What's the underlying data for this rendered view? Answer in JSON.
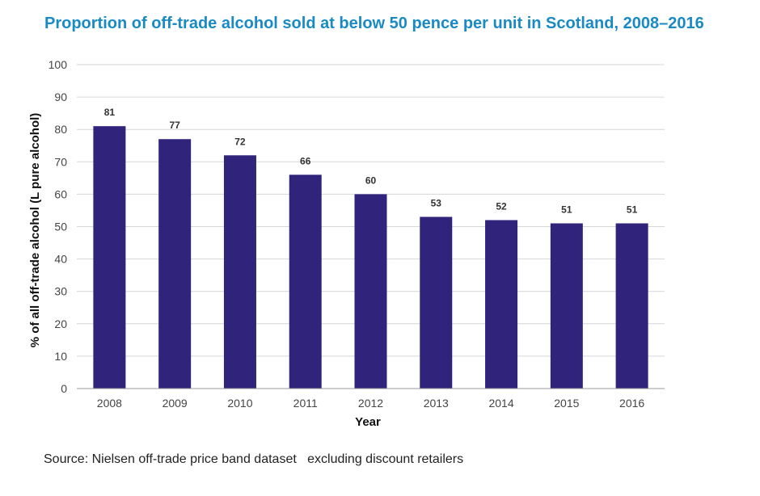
{
  "chart_data": {
    "type": "bar",
    "title": "Proportion of off-trade alcohol sold at below 50 pence per unit in Scotland, 2008–2016",
    "xlabel": "Year",
    "ylabel": "% of all off-trade alcohol (L pure alcohol)",
    "categories": [
      "2008",
      "2009",
      "2010",
      "2011",
      "2012",
      "2013",
      "2014",
      "2015",
      "2016"
    ],
    "values": [
      81,
      77,
      72,
      66,
      60,
      53,
      52,
      51,
      51
    ],
    "ylim": [
      0,
      100
    ],
    "yticks": [
      0,
      10,
      20,
      30,
      40,
      50,
      60,
      70,
      80,
      90,
      100
    ],
    "grid": true,
    "legend": "none",
    "colors": {
      "bar": "#30237c",
      "title": "#1a8ac4",
      "grid": "#d6d6d6"
    }
  },
  "source": "Source: Nielsen off-trade price band dataset   excluding discount retailers"
}
